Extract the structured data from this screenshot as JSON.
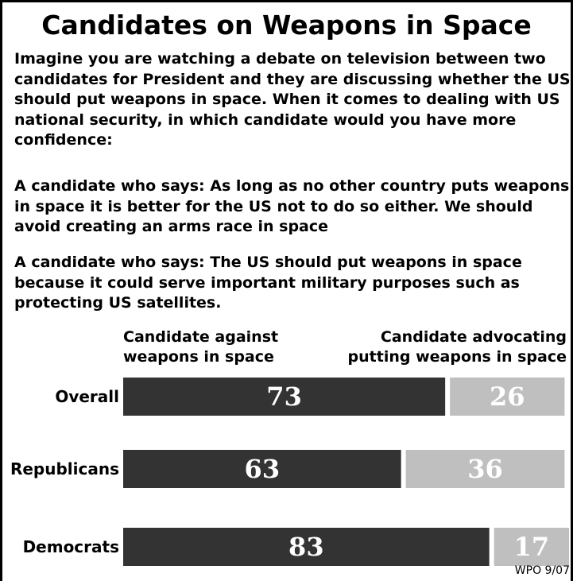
{
  "title": "Candidates on Weapons in Space",
  "question": "Imagine you are watching a debate on television between two candidates for President and they are discussing whether the US should put weapons in space.   When it comes to dealing with US national security, in which candidate would you have more confidence:",
  "option_1": "A candidate who says: As long as no other country puts weapons in space it is better for the US not to do so either.  We should avoid creating an arms race in space",
  "option_2": "A candidate who says: The US should put weapons in space because it could serve important military purposes such as protecting US satellites.",
  "source": "WPO 9/07",
  "colors": {
    "against": "#333333",
    "advocating": "#bfbfbf",
    "label_against": "#ffffff",
    "label_advocating": "#ffffff"
  },
  "chart_data": {
    "type": "bar",
    "orientation": "horizontal",
    "stacked": true,
    "categories": [
      "Overall",
      "Republicans",
      "Democrats"
    ],
    "series": [
      {
        "name": "Candidate against weapons in space",
        "values": [
          73,
          63,
          83
        ]
      },
      {
        "name": "Candidate advocating putting weapons in space",
        "values": [
          26,
          36,
          17
        ]
      }
    ],
    "series_headers": [
      [
        "Candidate against",
        "weapons in space"
      ],
      [
        "Candidate advocating",
        "putting weapons in space"
      ]
    ],
    "xlim": [
      0,
      100
    ],
    "grid": false,
    "legend": "top"
  }
}
